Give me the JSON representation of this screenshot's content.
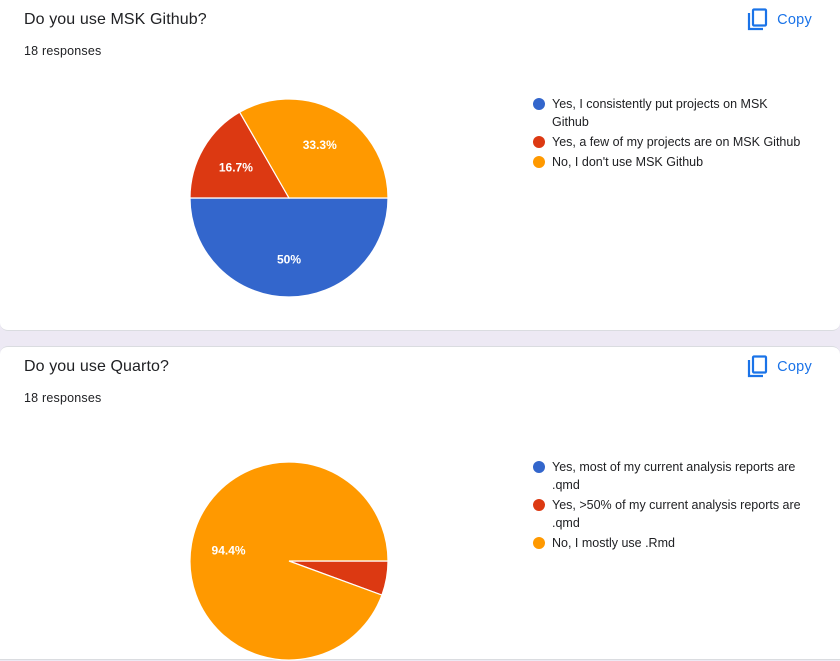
{
  "cards": [
    {
      "title": "Do you use MSK Github?",
      "responses": "18 responses",
      "copy_label": "Copy",
      "copy_icon": "copy-icon",
      "chart_data": {
        "type": "pie",
        "slices": [
          {
            "label": "Yes, I consistently put projects on MSK Github",
            "value": 50,
            "display": "50%",
            "color": "#3366cc"
          },
          {
            "label": "Yes, a few of my projects are on MSK Github",
            "value": 16.7,
            "display": "16.7%",
            "color": "#dc3912"
          },
          {
            "label": "No, I don't use MSK Github",
            "value": 33.3,
            "display": "33.3%",
            "color": "#ff9900"
          }
        ]
      }
    },
    {
      "title": "Do you use Quarto?",
      "responses": "18 responses",
      "copy_label": "Copy",
      "copy_icon": "copy-icon",
      "chart_data": {
        "type": "pie",
        "slices": [
          {
            "label": "Yes, most of my current analysis reports are .qmd",
            "value": 0,
            "display": "",
            "color": "#3366cc"
          },
          {
            "label": "Yes, >50% of my current analysis reports are .qmd",
            "value": 5.6,
            "display": "",
            "color": "#dc3912"
          },
          {
            "label": "No, I mostly use .Rmd",
            "value": 94.4,
            "display": "94.4%",
            "color": "#ff9900"
          }
        ]
      }
    }
  ]
}
